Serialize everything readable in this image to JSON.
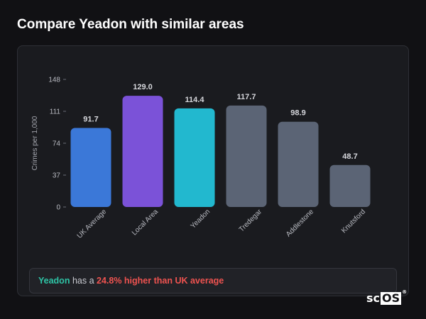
{
  "page_title": "Compare Yeadon with similar areas",
  "chart_data": {
    "type": "bar",
    "ylabel": "Crimes per 1,000",
    "ylim": [
      0,
      148
    ],
    "yticks": [
      0,
      37,
      74,
      111,
      148
    ],
    "categories": [
      "UK Average",
      "Local Area",
      "Yeadon",
      "Tredegar",
      "Addlestone",
      "Knutsford"
    ],
    "values": [
      91.7,
      129.0,
      114.4,
      117.7,
      98.9,
      48.7
    ],
    "value_labels": [
      "91.7",
      "129.0",
      "114.4",
      "117.7",
      "98.9",
      "48.7"
    ],
    "bar_colors": [
      "#3b78d8",
      "#7b52d8",
      "#22b8cf",
      "#5b6475",
      "#5b6475",
      "#5b6475"
    ]
  },
  "callout": {
    "area": "Yeadon",
    "middle": " has a ",
    "stat": "24.8% higher than UK average"
  },
  "logo": {
    "prefix": "sc",
    "boxed": "OS",
    "mark": "®"
  },
  "colors": {
    "background": "#111114",
    "card": "#1a1b1f",
    "highlight_area": "#2ec4a6",
    "highlight_stat": "#ef5350"
  }
}
